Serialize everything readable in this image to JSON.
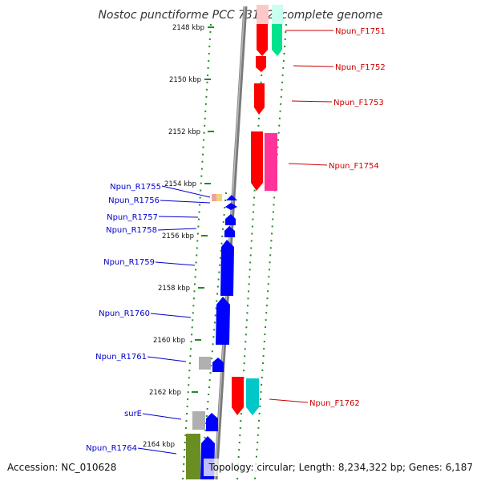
{
  "title": "Nostoc punctiforme PCC 73102, complete genome",
  "accession_text": "Accession: NC_010628",
  "info_text": "Topology: circular; Length: 8,234,322 bp; Genes: 6,187",
  "colors": {
    "forward_label": "#cc0000",
    "reverse_label": "#0000cc",
    "backbone": "#808080",
    "tick": "#228b22",
    "forward_gene": "#ff0000",
    "reverse_gene": "#0000ff"
  },
  "ticks": [
    "2148 kbp",
    "2150 kbp",
    "2152 kbp",
    "2154 kbp",
    "2156 kbp",
    "2158 kbp",
    "2160 kbp",
    "2162 kbp",
    "2164 kbp"
  ],
  "forward_genes": [
    "Npun_F1751",
    "Npun_F1752",
    "Npun_F1753",
    "Npun_F1754",
    "Npun_F1762"
  ],
  "reverse_genes": [
    "Npun_R1755",
    "Npun_R1756",
    "Npun_R1757",
    "Npun_R1758",
    "Npun_R1759",
    "Npun_R1760",
    "Npun_R1761",
    "surE",
    "Npun_R1764"
  ]
}
